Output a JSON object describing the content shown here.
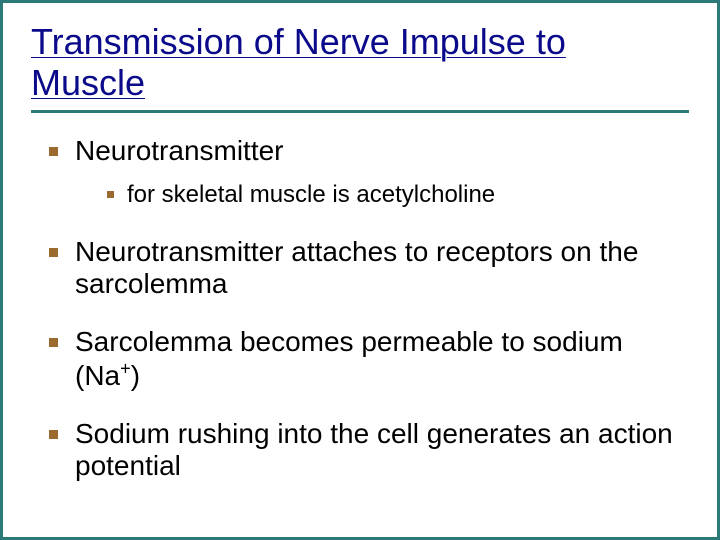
{
  "slide": {
    "title": "Transmission of Nerve Impulse to Muscle",
    "bullets": [
      {
        "text": "Neurotransmitter",
        "sub": [
          {
            "text": "for skeletal muscle is acetylcholine"
          }
        ]
      },
      {
        "text": "Neurotransmitter attaches to receptors on the sarcolemma"
      },
      {
        "text_html": "Sarcolemma becomes permeable to sodium (Na<sup>+</sup>)",
        "text": "Sarcolemma becomes permeable to sodium (Na+)"
      },
      {
        "text": "Sodium rushing into the cell generates an action potential"
      }
    ]
  },
  "style": {
    "border_color": "#2b7a77",
    "title_color": "#0a0a8a",
    "text_color": "#000000",
    "bullet_color": "#9a6a2e",
    "background_color": "#ffffff",
    "title_fontsize": 36,
    "body_fontsize": 28,
    "sub_fontsize": 24,
    "font_family": "Arial"
  }
}
